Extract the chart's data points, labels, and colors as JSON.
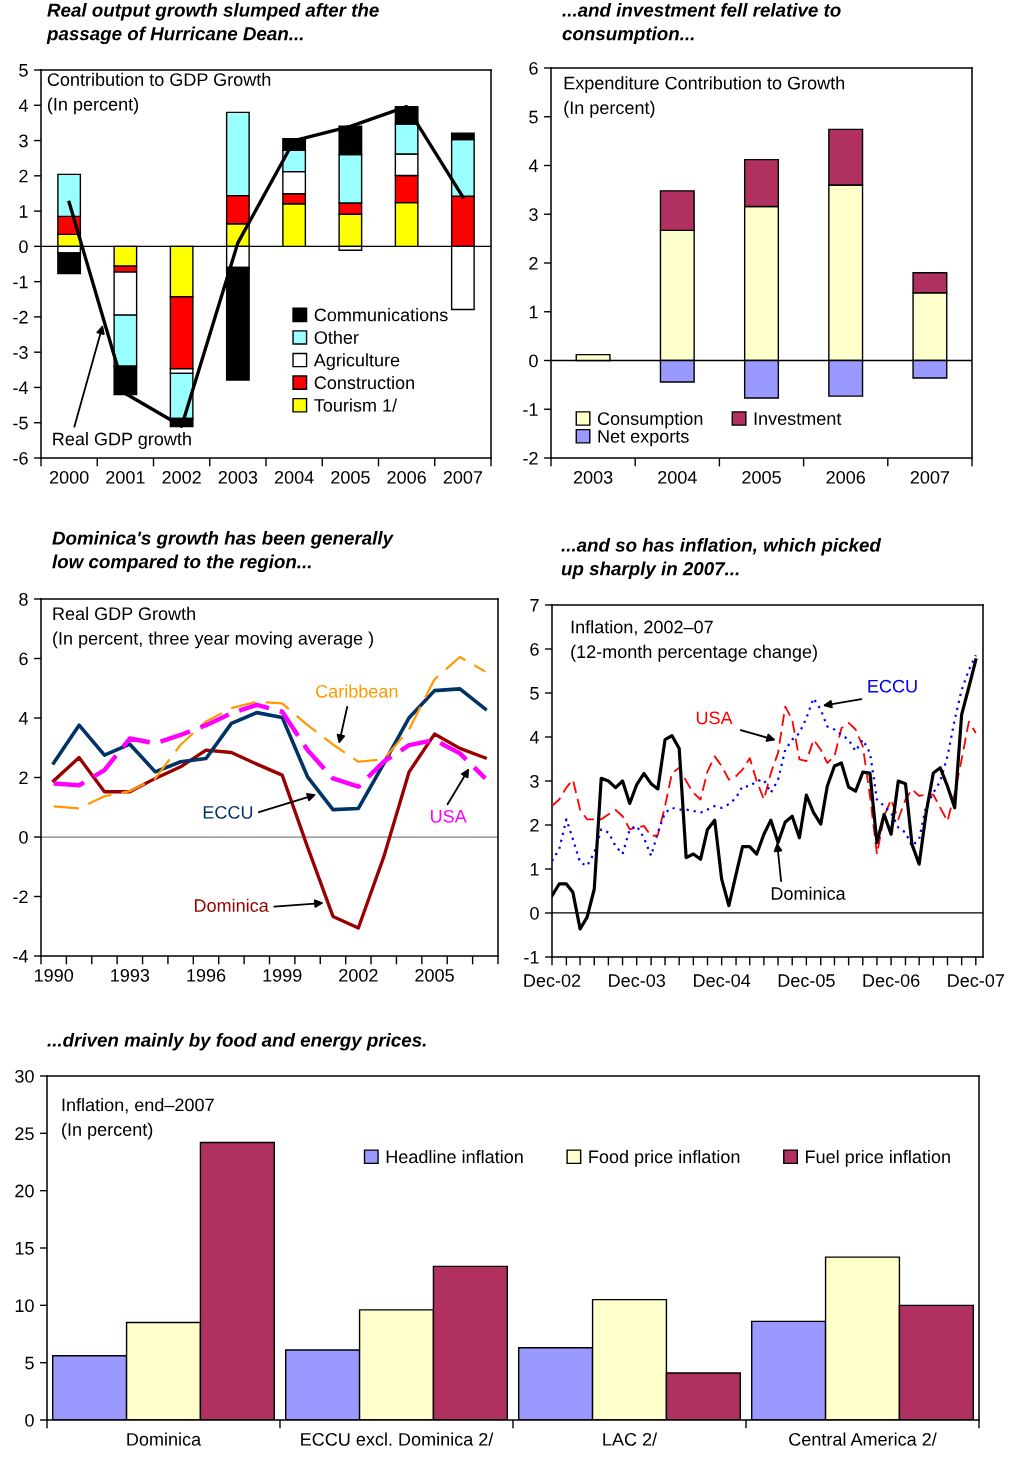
{
  "chart_data": [
    {
      "type": "bar",
      "stacked": true,
      "title": "Real output growth slumped after the\npassage of Hurricane Dean...",
      "subtitle": "Contribution to GDP Growth\n(In percent)",
      "categories": [
        "2000",
        "2001",
        "2002",
        "2003",
        "2004",
        "2005",
        "2006",
        "2007"
      ],
      "series": [
        {
          "name": "Tourism 1/",
          "color": "#ffff00",
          "values": [
            0.34,
            -0.56,
            -1.43,
            0.64,
            1.21,
            0.91,
            1.24,
            null
          ]
        },
        {
          "name": "Construction",
          "color": "#ff0000",
          "values": [
            0.51,
            -0.17,
            -2.04,
            0.8,
            0.28,
            0.32,
            0.77,
            1.42
          ]
        },
        {
          "name": "Agriculture",
          "color": "#ffffff",
          "values": [
            -0.19,
            -1.22,
            -0.13,
            -0.6,
            0.63,
            -0.11,
            0.61,
            -1.79
          ]
        },
        {
          "name": "Other",
          "color": "#99ffff",
          "values": [
            1.19,
            -1.45,
            -1.28,
            2.36,
            0.6,
            1.37,
            0.85,
            1.61
          ]
        },
        {
          "name": "Communications",
          "color": "#000000",
          "values": [
            -0.58,
            -0.8,
            -0.23,
            -3.19,
            0.33,
            0.81,
            0.49,
            0.18
          ]
        },
        {
          "name": "Real GDP growth",
          "type": "line",
          "color": "#000000",
          "values": [
            1.25,
            -4.17,
            -5.1,
            0.1,
            3.0,
            3.4,
            3.96,
            1.4
          ]
        }
      ],
      "ylim": [
        -6,
        5
      ],
      "yticks": [
        -6,
        -5,
        -4,
        -3,
        -2,
        -1,
        0,
        1,
        2,
        3,
        4,
        5
      ],
      "ref_lines": [
        {
          "axis": "y",
          "value": 0,
          "color": "#000000"
        }
      ],
      "legend": "bottom right"
    },
    {
      "type": "bar",
      "stacked": true,
      "title": "...and investment fell relative to\nconsumption...",
      "subtitle": "Expenditure Contribution to Growth\n(In percent)",
      "categories": [
        "2003",
        "2004",
        "2005",
        "2006",
        "2007"
      ],
      "series": [
        {
          "name": "Consumption",
          "color": "#ffffcc",
          "values": [
            0.12,
            2.67,
            3.16,
            3.6,
            1.39
          ]
        },
        {
          "name": "Investment",
          "color": "#b0305f",
          "values": [
            null,
            0.81,
            0.96,
            1.14,
            0.41
          ]
        },
        {
          "name": "Net exports",
          "color": "#9999ff",
          "values": [
            null,
            -0.44,
            -0.77,
            -0.73,
            -0.36
          ]
        }
      ],
      "ylim": [
        -2,
        6
      ],
      "yticks": [
        -2,
        -1,
        0,
        1,
        2,
        3,
        4,
        5,
        6
      ],
      "ref_lines": [
        {
          "axis": "y",
          "value": 0,
          "color": "#000000"
        }
      ],
      "legend": "bottom left"
    },
    {
      "type": "line",
      "title": "Dominica's growth has been generally\nlow compared to the region...",
      "subtitle": "Real GDP Growth\n(In percent, three year moving average )",
      "categories": [
        "1990",
        null,
        null,
        "1993",
        null,
        null,
        "1996",
        null,
        null,
        "1999",
        null,
        null,
        "2002",
        null,
        null,
        "2005",
        null,
        null
      ],
      "series": [
        {
          "name": "Dominica",
          "color": "#990000",
          "line_style": "solid",
          "values": [
            1.89,
            2.67,
            1.52,
            1.52,
            1.97,
            2.36,
            2.92,
            2.84,
            2.45,
            2.08,
            -0.34,
            -2.67,
            -3.06,
            -0.67,
            2.19,
            3.46,
            2.98,
            2.66
          ]
        },
        {
          "name": "ECCU",
          "color": "#003366",
          "line_style": "solid",
          "values": [
            2.49,
            3.76,
            2.75,
            3.12,
            2.19,
            2.53,
            2.64,
            3.82,
            4.18,
            4.02,
            2.02,
            0.92,
            0.96,
            2.47,
            4.01,
            4.92,
            4.98,
            4.3
          ]
        },
        {
          "name": "Caribbean",
          "color": "#ff9900",
          "line_style": "dashed",
          "values": [
            1.03,
            0.96,
            1.37,
            1.54,
            1.97,
            3.1,
            3.88,
            4.33,
            4.55,
            4.49,
            3.76,
            3.11,
            2.53,
            2.61,
            3.62,
            5.3,
            6.05,
            5.56
          ]
        },
        {
          "name": "USA",
          "color": "#ff00ff",
          "line_style": "dashed",
          "values": [
            1.8,
            1.74,
            2.25,
            3.31,
            3.15,
            3.43,
            3.76,
            4.16,
            4.44,
            4.21,
            2.92,
            1.97,
            1.69,
            2.53,
            3.09,
            3.26,
            2.81,
            1.97
          ]
        }
      ],
      "ylim": [
        -4,
        8
      ],
      "yticks": [
        -4,
        -2,
        0,
        2,
        4,
        6,
        8
      ],
      "ref_lines": [
        {
          "axis": "y",
          "value": 0,
          "color": "#808080"
        }
      ]
    },
    {
      "type": "line",
      "title": "...and so has inflation, which picked\nup sharply in 2007...",
      "subtitle": "Inflation, 2002–07\n(12-month percentage change)",
      "x": [
        "2002-12",
        "2003-01",
        "2003-02",
        "2003-03",
        "2003-04",
        "2003-05",
        "2003-06",
        "2003-07",
        "2003-08",
        "2003-09",
        "2003-10",
        "2003-11",
        "2003-12",
        "2004-01",
        "2004-02",
        "2004-03",
        "2004-04",
        "2004-05",
        "2004-06",
        "2004-07",
        "2004-08",
        "2004-09",
        "2004-10",
        "2004-11",
        "2004-12",
        "2005-01",
        "2005-02",
        "2005-03",
        "2005-04",
        "2005-05",
        "2005-06",
        "2005-07",
        "2005-08",
        "2005-09",
        "2005-10",
        "2005-11",
        "2005-12",
        "2006-01",
        "2006-02",
        "2006-03",
        "2006-04",
        "2006-05",
        "2006-06",
        "2006-07",
        "2006-08",
        "2006-09",
        "2006-10",
        "2006-11",
        "2006-12",
        "2007-01",
        "2007-02",
        "2007-03",
        "2007-04",
        "2007-05",
        "2007-06",
        "2007-07",
        "2007-08",
        "2007-09",
        "2007-10",
        "2007-11",
        "2007-12"
      ],
      "series": [
        {
          "name": "USA",
          "color": "#ff0000",
          "line_style": "dashed",
          "values": [
            2.43,
            2.58,
            2.85,
            3.03,
            2.35,
            2.13,
            2.13,
            2.13,
            2.24,
            2.34,
            2.2,
            1.9,
            1.94,
            1.98,
            1.75,
            1.77,
            2.43,
            3.18,
            3.3,
            3.0,
            2.73,
            2.58,
            3.22,
            3.56,
            3.34,
            3.03,
            3.11,
            3.26,
            3.52,
            3.0,
            2.58,
            3.18,
            3.64,
            4.69,
            4.39,
            3.49,
            3.45,
            3.94,
            3.71,
            3.41,
            3.56,
            4.2,
            4.32,
            4.17,
            3.79,
            2.66,
            1.34,
            2.2,
            2.58,
            2.13,
            2.58,
            2.81,
            2.66,
            2.69,
            2.69,
            2.39,
            2.09,
            2.73,
            3.49,
            4.35,
            4.09
          ]
        },
        {
          "name": "ECCU",
          "color": "#0000ff",
          "line_style": "dotted",
          "values": [
            1.18,
            1.45,
            2.13,
            1.68,
            1.15,
            1.07,
            1.37,
            1.9,
            1.83,
            1.52,
            1.34,
            1.9,
            1.98,
            1.71,
            1.3,
            1.83,
            2.28,
            2.39,
            2.35,
            2.35,
            2.32,
            2.28,
            2.35,
            2.43,
            2.39,
            2.47,
            2.62,
            2.88,
            2.88,
            3.0,
            3.03,
            2.73,
            3.03,
            3.71,
            3.94,
            4.09,
            4.43,
            4.88,
            4.62,
            4.24,
            4.17,
            4.05,
            3.94,
            3.68,
            3.94,
            3.64,
            2.58,
            2.43,
            2.28,
            1.94,
            1.83,
            1.52,
            1.68,
            2.43,
            2.73,
            3.0,
            3.56,
            4.39,
            5.07,
            5.52,
            5.86
          ]
        },
        {
          "name": "Dominica",
          "color": "#000000",
          "line_style": "solid",
          "values": [
            0.39,
            0.66,
            0.66,
            0.47,
            -0.36,
            -0.1,
            0.54,
            3.06,
            3.0,
            2.85,
            3.0,
            2.49,
            2.92,
            3.17,
            2.94,
            2.82,
            3.94,
            4.03,
            3.74,
            1.26,
            1.34,
            1.22,
            1.9,
            2.11,
            0.77,
            0.17,
            0.88,
            1.51,
            1.51,
            1.34,
            1.79,
            2.11,
            1.6,
            2.07,
            2.2,
            1.71,
            2.68,
            2.28,
            2.02,
            2.88,
            3.34,
            3.41,
            2.86,
            2.77,
            3.2,
            3.18,
            1.6,
            2.24,
            1.79,
            3.0,
            2.94,
            1.56,
            1.11,
            2.28,
            3.18,
            3.3,
            2.88,
            2.39,
            4.51,
            5.13,
            5.75
          ]
        }
      ],
      "xlim": [
        "2002-12",
        "2008-01"
      ],
      "xticks": [
        {
          "value": "2002-12",
          "label": "Dec-02"
        },
        {
          "value": "2003-02",
          "label": null
        },
        {
          "value": "2003-04",
          "label": null
        },
        {
          "value": "2003-06",
          "label": null
        },
        {
          "value": "2003-08",
          "label": null
        },
        {
          "value": "2003-10",
          "label": null
        },
        {
          "value": "2003-12",
          "label": "Dec-03"
        },
        {
          "value": "2004-02",
          "label": null
        },
        {
          "value": "2004-04",
          "label": null
        },
        {
          "value": "2004-06",
          "label": null
        },
        {
          "value": "2004-08",
          "label": null
        },
        {
          "value": "2004-10",
          "label": null
        },
        {
          "value": "2004-12",
          "label": "Dec-04"
        },
        {
          "value": "2005-02",
          "label": null
        },
        {
          "value": "2005-04",
          "label": null
        },
        {
          "value": "2005-06",
          "label": null
        },
        {
          "value": "2005-08",
          "label": null
        },
        {
          "value": "2005-10",
          "label": null
        },
        {
          "value": "2005-12",
          "label": "Dec-05"
        },
        {
          "value": "2006-02",
          "label": null
        },
        {
          "value": "2006-04",
          "label": null
        },
        {
          "value": "2006-06",
          "label": null
        },
        {
          "value": "2006-08",
          "label": null
        },
        {
          "value": "2006-10",
          "label": null
        },
        {
          "value": "2006-12",
          "label": "Dec-06"
        },
        {
          "value": "2007-02",
          "label": null
        },
        {
          "value": "2007-04",
          "label": null
        },
        {
          "value": "2007-06",
          "label": null
        },
        {
          "value": "2007-08",
          "label": null
        },
        {
          "value": "2007-10",
          "label": null
        },
        {
          "value": "2007-12",
          "label": "Dec-07"
        }
      ],
      "ylim": [
        -1,
        7
      ],
      "yticks": [
        -1,
        0,
        1,
        2,
        3,
        4,
        5,
        6,
        7
      ],
      "ref_lines": [
        {
          "axis": "y",
          "value": 0,
          "color": "#000000"
        }
      ]
    },
    {
      "type": "bar",
      "title": "...driven mainly by food and energy prices.",
      "subtitle": "Inflation, end–2007\n(In percent)",
      "categories": [
        "Dominica",
        "ECCU excl. Dominica 2/",
        "LAC 2/",
        "Central America 2/"
      ],
      "series": [
        {
          "name": "Headline inflation",
          "color": "#9999ff",
          "values": [
            5.6,
            6.1,
            6.3,
            8.6
          ]
        },
        {
          "name": "Food price inflation",
          "color": "#ffffcc",
          "values": [
            8.5,
            9.6,
            10.5,
            14.2
          ]
        },
        {
          "name": "Fuel price inflation",
          "color": "#b0305f",
          "values": [
            24.2,
            13.4,
            4.1,
            10.0
          ]
        }
      ],
      "ylim": [
        0,
        30
      ],
      "yticks": [
        0,
        5,
        10,
        15,
        20,
        25,
        30
      ],
      "legend": "top right"
    }
  ]
}
